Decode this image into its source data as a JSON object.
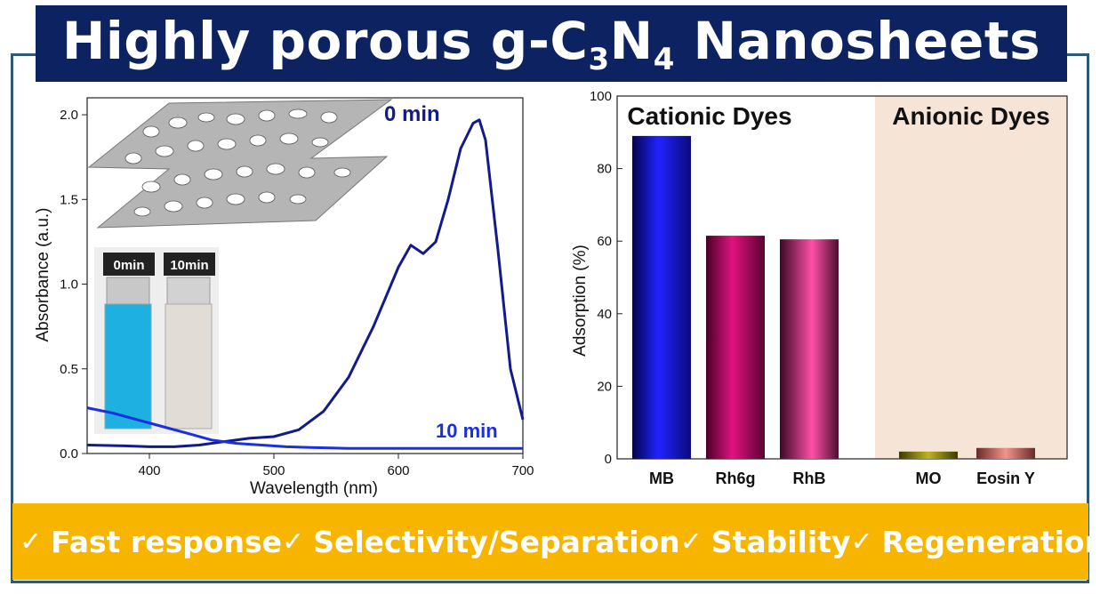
{
  "title": {
    "pre": "Highly porous g-C",
    "sub1": "3",
    "mid": "N",
    "sub2": "4",
    "post": " Nanosheets"
  },
  "colors": {
    "banner": "#0d2361",
    "footer": "#f7b500",
    "frame": "#2f5a77",
    "line": "#111b8c",
    "line10": "#1a2fe0"
  },
  "features": [
    {
      "check": "✓",
      "label": "Fast response"
    },
    {
      "check": "✓",
      "label": "Selectivity/Separation"
    },
    {
      "check": "✓",
      "label": "Stability"
    },
    {
      "check": "✓",
      "label": "Regeneration"
    }
  ],
  "chart_data": [
    {
      "type": "line",
      "xlabel": "Wavelength (nm)",
      "ylabel": "Absorbance (a.u.)",
      "xlim": [
        350,
        700
      ],
      "ylim": [
        0,
        2.1
      ],
      "xticks": [
        "400",
        "500",
        "600",
        "700"
      ],
      "xtick_values": [
        400,
        500,
        600,
        700
      ],
      "yticks": [
        "0.0",
        "0.5",
        "1.0",
        "1.5",
        "2.0"
      ],
      "ytick_values": [
        0,
        0.5,
        1.0,
        1.5,
        2.0
      ],
      "series": [
        {
          "name": "0 min",
          "x": [
            350,
            380,
            400,
            420,
            440,
            460,
            480,
            500,
            520,
            540,
            560,
            580,
            600,
            610,
            620,
            630,
            640,
            650,
            660,
            665,
            670,
            680,
            690,
            700
          ],
          "y": [
            0.05,
            0.045,
            0.04,
            0.04,
            0.05,
            0.07,
            0.09,
            0.1,
            0.14,
            0.25,
            0.45,
            0.75,
            1.1,
            1.23,
            1.18,
            1.25,
            1.5,
            1.8,
            1.95,
            1.97,
            1.85,
            1.2,
            0.5,
            0.2
          ]
        },
        {
          "name": "10 min",
          "x": [
            350,
            370,
            390,
            410,
            430,
            450,
            470,
            490,
            510,
            530,
            560,
            600,
            650,
            700
          ],
          "y": [
            0.27,
            0.24,
            0.2,
            0.16,
            0.12,
            0.08,
            0.06,
            0.05,
            0.04,
            0.035,
            0.03,
            0.03,
            0.03,
            0.03
          ]
        }
      ],
      "annotations": {
        "s0": "0 min",
        "s10": "10 min",
        "vial0": "0min",
        "vial10": "10min"
      }
    },
    {
      "type": "bar",
      "ylabel": "Adsorption (%)",
      "ylim": [
        0,
        100
      ],
      "yticks": [
        "0",
        "20",
        "40",
        "60",
        "80",
        "100"
      ],
      "ytick_values": [
        0,
        20,
        40,
        60,
        80,
        100
      ],
      "categories": [
        "MB",
        "Rh6g",
        "RhB",
        "MO",
        "Eosin Y"
      ],
      "values": [
        89,
        61.5,
        60.5,
        2,
        3
      ],
      "groups": {
        "cationic": "Cationic Dyes",
        "anionic": "Anionic Dyes"
      }
    }
  ]
}
